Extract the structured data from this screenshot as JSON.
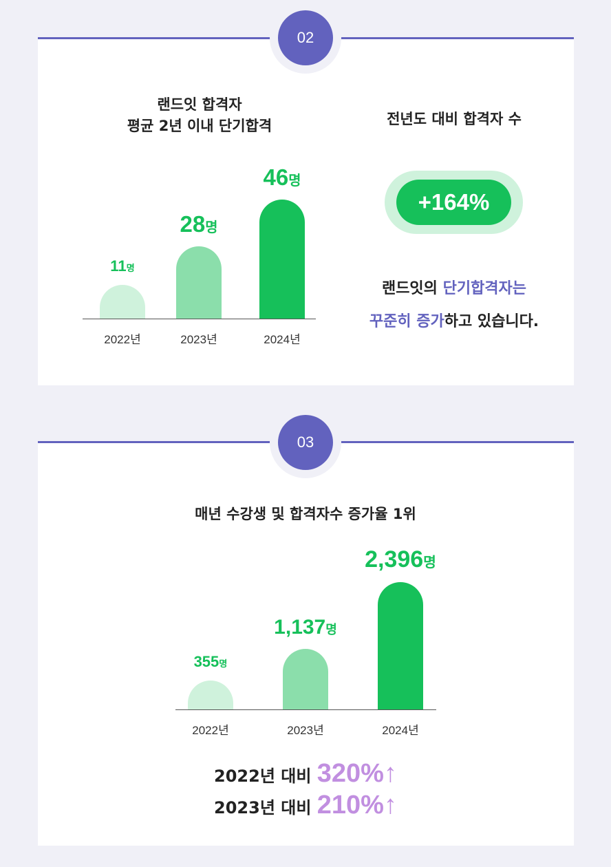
{
  "section1": {
    "badge": "02",
    "chart_title_line1": "랜드잇 합격자",
    "chart_title_line2": "평균 2년 이내 단기합격",
    "right_title": "전년도 대비 합격자 수",
    "growth": "+164%",
    "desc_part1": "랜드잇의 ",
    "desc_hl1": "단기합격자는",
    "desc_hl2": "꾸준히 증가",
    "desc_part2": "하고 있습니다."
  },
  "section2": {
    "badge": "03",
    "title": "매년 수강생 및 합격자수 증가율 1위",
    "compare": [
      {
        "label": "2022년 대비 ",
        "value": "320%↑"
      },
      {
        "label": "2023년 대비 ",
        "value": "210%↑"
      }
    ]
  },
  "colors": {
    "accent": "#6262be",
    "green": "#16c05a",
    "green_mid": "#8bdeab",
    "green_light": "#cff2dc",
    "purple_pct": "#c18fe0"
  },
  "chart_data": [
    {
      "type": "bar",
      "categories": [
        "2022년",
        "2023년",
        "2024년"
      ],
      "values": [
        11,
        28,
        46
      ],
      "value_labels": [
        "11",
        "28",
        "46"
      ],
      "unit": "명",
      "title": "랜드잇 합격자 평균 2년 이내 단기합격",
      "bar_colors": [
        "#cff2dc",
        "#8bdeab",
        "#16c05a"
      ]
    },
    {
      "type": "bar",
      "categories": [
        "2022년",
        "2023년",
        "2024년"
      ],
      "values": [
        355,
        1137,
        2396
      ],
      "value_labels": [
        "355",
        "1,137",
        "2,396"
      ],
      "unit": "명",
      "title": "매년 수강생 및 합격자수 증가율 1위",
      "bar_colors": [
        "#cff2dc",
        "#8bdeab",
        "#16c05a"
      ]
    }
  ]
}
